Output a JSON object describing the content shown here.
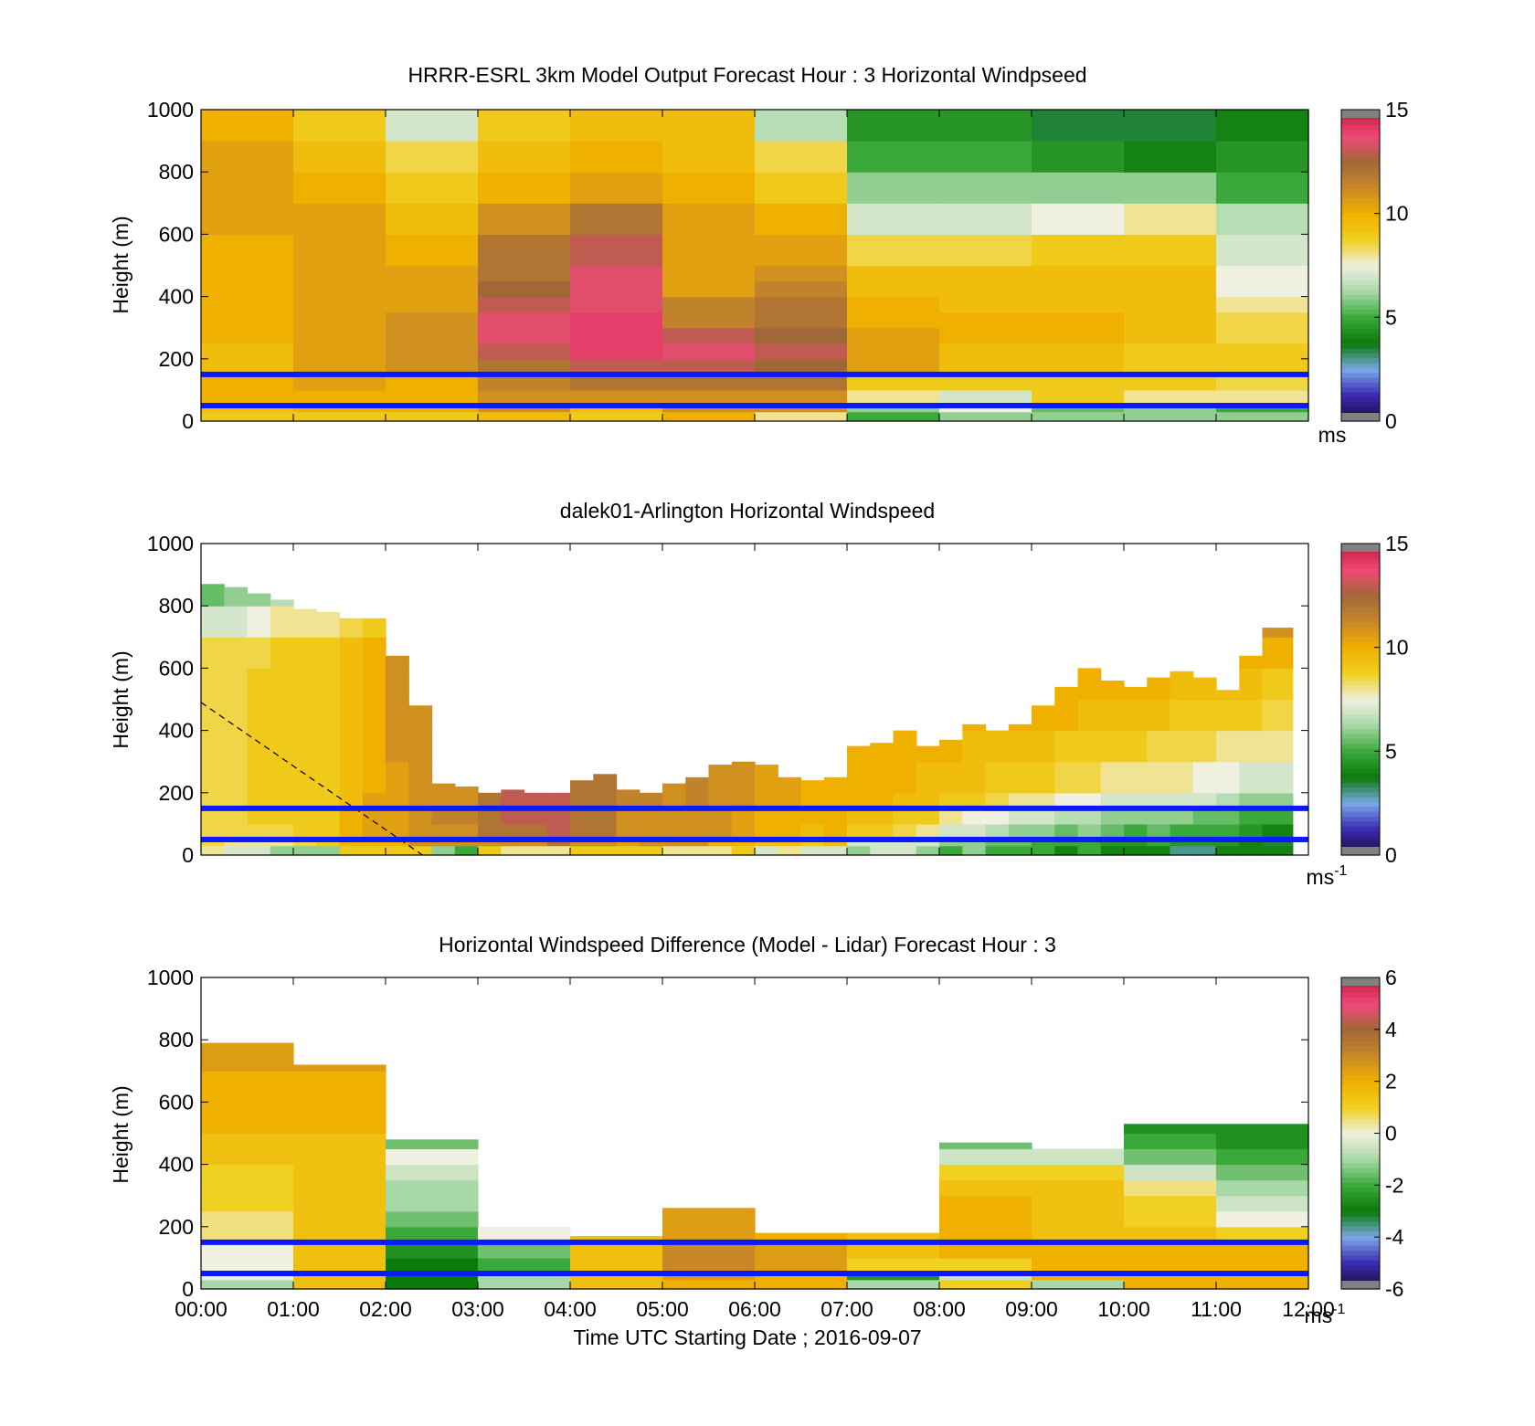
{
  "figure": {
    "xlabel": "Time UTC  Starting Date ; 2016-09-07",
    "x_ticks": [
      "00:00",
      "01:00",
      "02:00",
      "03:00",
      "04:00",
      "05:00",
      "06:00",
      "07:00",
      "08:00",
      "09:00",
      "10:00",
      "11:00",
      "12:00"
    ]
  },
  "colormap": {
    "stops": [
      "#1a0a3a",
      "#3a2ab0",
      "#7aa8e8",
      "#0a7a0a",
      "#3aa83a",
      "#a8d8a8",
      "#f0f0e0",
      "#f0d020",
      "#f0b000",
      "#c88828",
      "#a06838",
      "#f04878",
      "#c01838"
    ]
  },
  "chart_data": [
    {
      "type": "heatmap",
      "title": "HRRR-ESRL 3km Model Output   Forecast Hour : 3 Horizontal Windpseed",
      "ylabel": "Height (m)",
      "y_ticks": [
        "0",
        "200",
        "400",
        "600",
        "800",
        "1000"
      ],
      "ylim": [
        0,
        1000
      ],
      "xlim_hours": [
        0,
        12
      ],
      "x_bins_hours": [
        0,
        1,
        2,
        3,
        4,
        5,
        6,
        7,
        8,
        9,
        10,
        11,
        12
      ],
      "y_bins_m": [
        0,
        30,
        60,
        100,
        150,
        200,
        250,
        300,
        350,
        400,
        450,
        500,
        600,
        700,
        800,
        900,
        1000
      ],
      "z": [
        [
          9,
          9,
          9,
          9.5,
          9,
          10,
          8,
          5,
          6,
          6,
          6,
          6
        ],
        [
          9.5,
          10,
          10,
          11,
          9.5,
          11,
          11,
          6,
          7.5,
          5.5,
          6,
          5
        ],
        [
          10,
          10,
          10,
          11,
          11,
          11,
          11,
          8,
          7,
          9,
          8,
          8
        ],
        [
          10,
          10.5,
          10,
          11.5,
          12,
          12,
          12,
          9,
          9,
          9,
          9,
          8.5
        ],
        [
          9.5,
          10.5,
          11,
          12,
          13,
          13,
          12.5,
          10.5,
          9.5,
          9.5,
          9,
          9
        ],
        [
          9.5,
          10.5,
          11,
          13,
          14,
          13.5,
          13,
          10.5,
          9.5,
          9.5,
          9,
          9
        ],
        [
          10,
          10.5,
          11,
          13.5,
          14,
          13,
          12.5,
          10.5,
          10,
          10,
          9.5,
          8.5
        ],
        [
          10,
          10.5,
          11,
          13.5,
          14,
          11.5,
          12,
          10,
          10,
          10,
          9.5,
          8.5
        ],
        [
          10,
          10.5,
          10.5,
          13,
          13.5,
          11.5,
          12,
          10,
          9.5,
          9.5,
          9.5,
          8
        ],
        [
          10,
          10.5,
          10.5,
          12.5,
          13.5,
          10.5,
          11.5,
          9.5,
          9.5,
          9.5,
          9.5,
          7.5
        ],
        [
          10,
          10.5,
          10.5,
          12,
          13.5,
          10.5,
          11,
          9.5,
          9.5,
          9.5,
          9.5,
          7.5
        ],
        [
          10,
          10.5,
          10,
          12,
          13,
          10.5,
          10.5,
          8.5,
          8.5,
          9,
          9,
          7
        ],
        [
          10.5,
          10.5,
          9.5,
          11,
          12,
          10.5,
          10,
          7,
          7,
          7.5,
          8,
          6.5
        ],
        [
          10.5,
          10,
          9,
          10,
          10.5,
          10,
          9,
          6,
          6,
          6,
          6,
          5
        ],
        [
          10.5,
          9.5,
          8.5,
          9.5,
          10,
          9.5,
          8.5,
          5,
          5,
          4.5,
          4,
          4.5
        ],
        [
          10,
          9,
          7,
          9,
          9.5,
          9.5,
          6.5,
          4.5,
          4.5,
          3.5,
          3.5,
          4
        ]
      ],
      "clim": [
        0,
        15
      ],
      "colorbar_ticks": [
        "0",
        "5",
        "10",
        "15"
      ],
      "colorbar_label": "ms",
      "lines_m": [
        50,
        150
      ]
    },
    {
      "type": "heatmap",
      "title": "dalek01-Arlington  Horizontal Windspeed",
      "ylabel": "Height (m)",
      "y_ticks": [
        "0",
        "200",
        "400",
        "600",
        "800",
        "1000"
      ],
      "ylim": [
        0,
        1000
      ],
      "xlim_hours": [
        0,
        11.83
      ],
      "x_bins_hours": [
        0,
        0.25,
        0.5,
        0.75,
        1,
        1.25,
        1.5,
        1.75,
        2,
        2.25,
        2.5,
        2.75,
        3,
        3.25,
        3.5,
        3.75,
        4,
        4.25,
        4.5,
        4.75,
        5,
        5.25,
        5.5,
        5.75,
        6,
        6.25,
        6.5,
        6.75,
        7,
        7.25,
        7.5,
        7.75,
        8,
        8.25,
        8.5,
        8.75,
        9,
        9.25,
        9.5,
        9.75,
        10,
        10.25,
        10.5,
        10.75,
        11,
        11.25,
        11.5,
        11.83
      ],
      "top_m": [
        870,
        860,
        840,
        820,
        790,
        780,
        760,
        760,
        640,
        480,
        230,
        220,
        200,
        210,
        200,
        200,
        240,
        260,
        210,
        200,
        230,
        250,
        290,
        300,
        290,
        250,
        240,
        250,
        350,
        360,
        400,
        350,
        370,
        420,
        400,
        420,
        480,
        540,
        600,
        560,
        540,
        570,
        590,
        570,
        530,
        640,
        730
      ],
      "y_bins_m": [
        0,
        30,
        60,
        100,
        150,
        200,
        300,
        400,
        500,
        600,
        700,
        800,
        900
      ],
      "z": [
        [
          8,
          7,
          7,
          6,
          6,
          6,
          9,
          9,
          9,
          9,
          6,
          5,
          9,
          8,
          8,
          8,
          9,
          9,
          9,
          9,
          8,
          8,
          8,
          9,
          7,
          8,
          7,
          7,
          6,
          7,
          7,
          6,
          5,
          6,
          5,
          5,
          5,
          4,
          5,
          4,
          4,
          4,
          3,
          3,
          4,
          4,
          4
        ],
        [
          8.5,
          8,
          8,
          8,
          8.5,
          9,
          10,
          10,
          10,
          11,
          11,
          11,
          11,
          11,
          11,
          12,
          11,
          11,
          10.5,
          11,
          11,
          11,
          10,
          10,
          9.5,
          9.5,
          9,
          9.5,
          7,
          7,
          7,
          7,
          6,
          6,
          5.5,
          5.5,
          5,
          5,
          5,
          4.5,
          4.5,
          5,
          4.5,
          4.5,
          4.5,
          4,
          3.5
        ],
        [
          8.5,
          8.5,
          8.5,
          8.5,
          9,
          9,
          10,
          10.5,
          10.5,
          11,
          11,
          11,
          12,
          12,
          12,
          13,
          12,
          12,
          11,
          11,
          11,
          11,
          11,
          10.5,
          10,
          10,
          9.5,
          10,
          9,
          9,
          8.5,
          8,
          7,
          7,
          6.5,
          6,
          6,
          5.5,
          6,
          5.5,
          5,
          5.5,
          5,
          5,
          5,
          4.5,
          4
        ],
        [
          8.5,
          8.5,
          9,
          9,
          9,
          9,
          10,
          10.5,
          10.5,
          11,
          11.5,
          11.5,
          12,
          13,
          13,
          13,
          12,
          12,
          11,
          11,
          11,
          11,
          11,
          10.5,
          10,
          10,
          10,
          10,
          9.5,
          9.5,
          9,
          9,
          8,
          7.5,
          7.5,
          7,
          7,
          6.5,
          6.5,
          6,
          6,
          6,
          6,
          5.5,
          5.5,
          5,
          5
        ],
        [
          8.5,
          8.5,
          9,
          9,
          9,
          9,
          9.5,
          10.5,
          10.5,
          11,
          11,
          11,
          12,
          13,
          13,
          13,
          12,
          12,
          11.5,
          11.5,
          11,
          11.5,
          11,
          11,
          10.5,
          10.5,
          10,
          10,
          10,
          10,
          9.5,
          9.5,
          9,
          9,
          8.5,
          8,
          8,
          7.5,
          7.5,
          7,
          7,
          7,
          7,
          7,
          6.5,
          6,
          6
        ],
        [
          8.5,
          8.5,
          9,
          9,
          9,
          9,
          9.5,
          10,
          10.5,
          11,
          11,
          11,
          12,
          13,
          13,
          13,
          12,
          12,
          11.5,
          11.5,
          11,
          11.5,
          11,
          11,
          10.5,
          10.5,
          10,
          10,
          10,
          10,
          10,
          9.5,
          9.5,
          9.5,
          9,
          9,
          9,
          8.5,
          8.5,
          8,
          8,
          8,
          8,
          7.5,
          7.5,
          7,
          7
        ],
        [
          8.5,
          8.5,
          9,
          9,
          9,
          9,
          9.5,
          10,
          11,
          11,
          11,
          11,
          12,
          13,
          13,
          13,
          12,
          12,
          11.5,
          11.5,
          11,
          11.5,
          11,
          11,
          10.5,
          10.5,
          10,
          10,
          10,
          10,
          10,
          10,
          10,
          9.5,
          9.5,
          9.5,
          9.5,
          9,
          9,
          9,
          9,
          8.5,
          8.5,
          8.5,
          8,
          8,
          8
        ],
        [
          8.5,
          8.5,
          9,
          9,
          9,
          9,
          9.5,
          10,
          11,
          11,
          11,
          11,
          12,
          13,
          13,
          13,
          12,
          12,
          11.5,
          11.5,
          11,
          11.5,
          11,
          11,
          10.5,
          10.5,
          10,
          10,
          10,
          10,
          10,
          10,
          10,
          10,
          10,
          10,
          10,
          10,
          9.5,
          9.5,
          9.5,
          9.5,
          9,
          9,
          9,
          9,
          8.5
        ],
        [
          8.5,
          8.5,
          9,
          9,
          9,
          9,
          9.5,
          10,
          11,
          11,
          11,
          11,
          12,
          13,
          13,
          13,
          12,
          12,
          11.5,
          11.5,
          11,
          11.5,
          11,
          11,
          10.5,
          10.5,
          10,
          10,
          10,
          10,
          10,
          10,
          10,
          10,
          10.5,
          10.5,
          10.5,
          10,
          10,
          10,
          10,
          10,
          9.5,
          9.5,
          9.5,
          9.5,
          9
        ],
        [
          8.5,
          8.5,
          8.5,
          9,
          9,
          9,
          9.5,
          10,
          11,
          11,
          11,
          11,
          12,
          13,
          13,
          13,
          12,
          12,
          11.5,
          11.5,
          11,
          11.5,
          11,
          11,
          10.5,
          10.5,
          10,
          10,
          10,
          10,
          10,
          10,
          10,
          10,
          10.5,
          11,
          11,
          10.5,
          10.5,
          10.5,
          10.5,
          10,
          10,
          10,
          10,
          10,
          10
        ],
        [
          7,
          7,
          7.5,
          8,
          8,
          8,
          8.5,
          9,
          11,
          11,
          11,
          11,
          12,
          13,
          13,
          13,
          12,
          12,
          11.5,
          11.5,
          11,
          11.5,
          11,
          11,
          10.5,
          10.5,
          10,
          10,
          10,
          10,
          10,
          10,
          10,
          10,
          10.5,
          11,
          11,
          11,
          11,
          11,
          11,
          11,
          11,
          11,
          11,
          11,
          11
        ],
        [
          5.5,
          6,
          6,
          6.5,
          7,
          7,
          7.5,
          8,
          11,
          11,
          11,
          11,
          12,
          13,
          13,
          13,
          12,
          12,
          11.5,
          11.5,
          11,
          11.5,
          11,
          11,
          10.5,
          10.5,
          10,
          10,
          10,
          10,
          10,
          10,
          10,
          10,
          10.5,
          11,
          11,
          11,
          11,
          11,
          11,
          11,
          11,
          11,
          11,
          11,
          11
        ]
      ],
      "clim": [
        0,
        15
      ],
      "colorbar_ticks": [
        "0",
        "5",
        "10",
        "15"
      ],
      "colorbar_label": "ms",
      "colorbar_label_sup": "-1",
      "lines_m": [
        50,
        150
      ],
      "dashed_line": {
        "start": [
          0,
          490
        ],
        "end": [
          2.4,
          0
        ]
      }
    },
    {
      "type": "heatmap",
      "title": "Horizontal Windspeed Difference (Model - Lidar) Forecast Hour : 3",
      "ylabel": "Height (m)",
      "y_ticks": [
        "0",
        "200",
        "400",
        "600",
        "800",
        "1000"
      ],
      "ylim": [
        0,
        1000
      ],
      "xlim_hours": [
        0,
        12
      ],
      "x_bins_hours": [
        0,
        1,
        2,
        3,
        4,
        5,
        6,
        7,
        8,
        9,
        10,
        11,
        12
      ],
      "top_m": [
        790,
        720,
        480,
        200,
        170,
        260,
        180,
        180,
        470,
        450,
        530,
        530
      ],
      "y_bins_m": [
        0,
        30,
        60,
        100,
        150,
        200,
        250,
        300,
        350,
        400,
        450,
        500,
        600,
        700,
        800
      ],
      "z": [
        [
          -1,
          1.5,
          -3,
          -1,
          1.5,
          2,
          2,
          -1,
          1,
          -1,
          2,
          2
        ],
        [
          0,
          1.5,
          -3,
          -1,
          1.5,
          2.5,
          2,
          -2.5,
          -0.5,
          2,
          2,
          2
        ],
        [
          0,
          1.5,
          -3,
          -2,
          1.5,
          3,
          2.5,
          1,
          1,
          2,
          2,
          2
        ],
        [
          0,
          1.5,
          -2.5,
          -1.5,
          1.5,
          3,
          2.5,
          1.5,
          2,
          2,
          2,
          2
        ],
        [
          0.5,
          1.5,
          -2,
          0,
          1.5,
          2.5,
          2,
          1.5,
          2,
          1.5,
          1.5,
          1
        ],
        [
          0.5,
          1.5,
          -1.5,
          0,
          0,
          2.5,
          0,
          0,
          2,
          1.5,
          1,
          0
        ],
        [
          1,
          1.5,
          -1,
          0,
          0,
          2.5,
          0,
          0,
          2,
          1.5,
          1,
          -0.5
        ],
        [
          1,
          1.5,
          -1,
          0,
          0,
          0,
          0,
          0,
          1.5,
          1.5,
          0.5,
          -1
        ],
        [
          1,
          1.5,
          -0.5,
          0,
          0,
          0,
          0,
          0,
          1,
          1,
          -0.5,
          -1.5
        ],
        [
          1.5,
          1.5,
          0,
          0,
          0,
          0,
          0,
          0,
          -0.5,
          -0.5,
          -1.5,
          -2
        ],
        [
          1.5,
          1.5,
          -1.5,
          0,
          0,
          0,
          0,
          0,
          -1.5,
          -1,
          -2,
          -2.5
        ],
        [
          2,
          2,
          0,
          0,
          0,
          0,
          0,
          0,
          0,
          0,
          -2.5,
          -2.5
        ],
        [
          2,
          2,
          0,
          0,
          0,
          0,
          0,
          0,
          0,
          0,
          0,
          0
        ],
        [
          2.5,
          2.5,
          0,
          0,
          0,
          0,
          0,
          0,
          0,
          0,
          0,
          0
        ]
      ],
      "clim": [
        -6,
        6
      ],
      "colorbar_ticks": [
        "-6",
        "-4",
        "-2",
        "0",
        "2",
        "4",
        "6"
      ],
      "colorbar_label": "ms",
      "colorbar_label_sup": "-1",
      "lines_m": [
        50,
        150
      ]
    }
  ]
}
